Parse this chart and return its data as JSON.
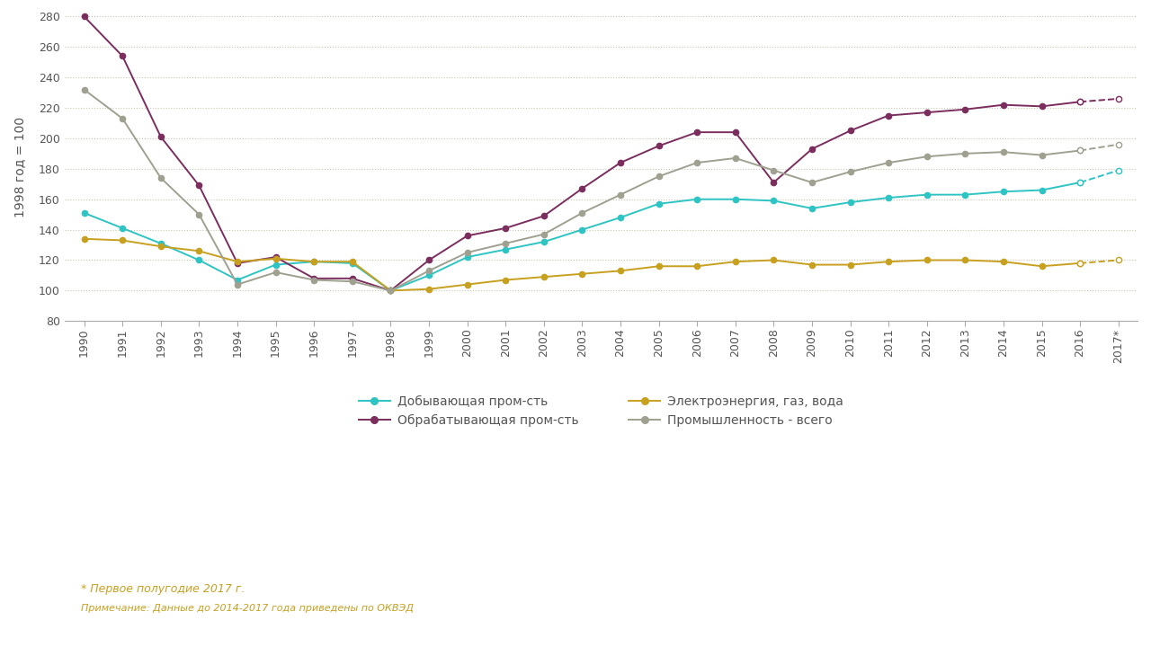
{
  "years_num": [
    1990,
    1991,
    1992,
    1993,
    1994,
    1995,
    1996,
    1997,
    1998,
    1999,
    2000,
    2001,
    2002,
    2003,
    2004,
    2005,
    2006,
    2007,
    2008,
    2009,
    2010,
    2011,
    2012,
    2013,
    2014,
    2015,
    2016,
    2017
  ],
  "dobyvayuschaya": [
    151,
    141,
    131,
    120,
    107,
    117,
    119,
    118,
    100,
    110,
    122,
    127,
    132,
    140,
    148,
    157,
    160,
    160,
    159,
    154,
    158,
    161,
    163,
    163,
    165,
    166,
    171,
    179
  ],
  "obrabatyvayuschaya": [
    280,
    254,
    201,
    169,
    118,
    122,
    108,
    108,
    100,
    120,
    136,
    141,
    149,
    167,
    184,
    195,
    204,
    204,
    171,
    193,
    205,
    215,
    217,
    219,
    222,
    221,
    224,
    226
  ],
  "elektro": [
    134,
    133,
    129,
    126,
    119,
    121,
    119,
    119,
    100,
    101,
    104,
    107,
    109,
    111,
    113,
    116,
    116,
    119,
    120,
    117,
    117,
    119,
    120,
    120,
    119,
    116,
    118,
    120
  ],
  "promyshlennost": [
    232,
    213,
    174,
    150,
    104,
    112,
    107,
    106,
    100,
    113,
    125,
    131,
    137,
    151,
    163,
    175,
    184,
    187,
    179,
    171,
    178,
    184,
    188,
    190,
    191,
    189,
    192,
    196
  ],
  "ylabel": "1998 год = 100",
  "ylim": [
    80,
    282
  ],
  "yticks": [
    80,
    100,
    120,
    140,
    160,
    180,
    200,
    220,
    240,
    260,
    280
  ],
  "footnote": "* Первое полугодие 2017 г.",
  "footnote2": "Примечание: Данные до 2014-2017 года приведены по ОКВЭД",
  "colors": {
    "dobyvayuschaya": "#2ec4c4",
    "obrabatyvayuschaya": "#7b2d5e",
    "elektro": "#c8a020",
    "promyshlennost": "#a0a090"
  },
  "legend_labels": [
    "Добывающая пром-сть",
    "Обрабатывающая пром-сть",
    "Электроэнергия, газ, вода",
    "Промышленность - всего"
  ],
  "bg_color": "#ffffff",
  "grid_color": "#c8c8b4",
  "tick_label_color": "#555555"
}
